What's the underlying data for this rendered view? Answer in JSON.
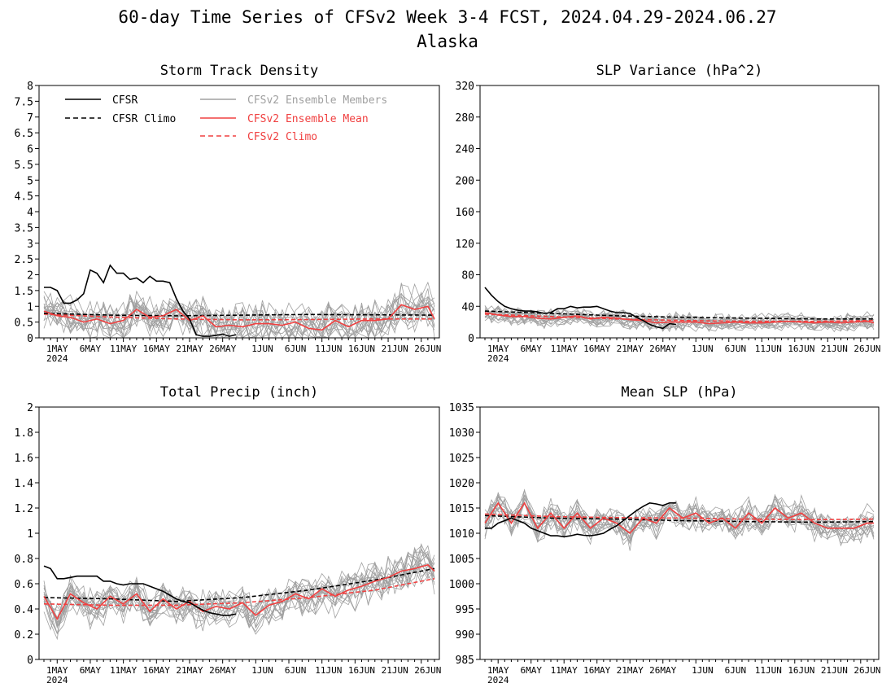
{
  "title": "60-day Time Series of CFSv2 Week 3-4 FCST, 2024.04.29-2024.06.27",
  "subtitle": "Alaska",
  "colors": {
    "cfsr": "#000000",
    "members": "#a0a0a0",
    "ens_mean": "#f04040",
    "axis": "#000000"
  },
  "legend": {
    "placement": "top-left",
    "entries": [
      {
        "label": "CFSR",
        "style": "solid",
        "color": "#000000"
      },
      {
        "label": "CFSR Climo",
        "style": "dashed",
        "color": "#000000"
      },
      {
        "label": "CFSv2 Ensemble Members",
        "style": "solid",
        "color": "#a0a0a0"
      },
      {
        "label": "CFSv2 Ensemble Mean",
        "style": "solid",
        "color": "#f04040"
      },
      {
        "label": "CFSv2 Climo",
        "style": "dashed",
        "color": "#f04040"
      }
    ]
  },
  "chart_data": [
    {
      "type": "line",
      "title": "Storm Track Density",
      "ylim": [
        0,
        8
      ],
      "yticks": [
        0,
        0.5,
        1,
        1.5,
        2,
        2.5,
        3,
        3.5,
        4,
        4.5,
        5,
        5.5,
        6,
        6.5,
        7,
        7.5,
        8
      ],
      "ytick_labels": [
        "0",
        "0.5",
        "1",
        "1.5",
        "2",
        "2.5",
        "3",
        "3.5",
        "4",
        "4.5",
        "5",
        "5.5",
        "6",
        "6.5",
        "7",
        "7.5",
        "8"
      ],
      "x_range_days": [
        0,
        59
      ],
      "xticks": [
        "1MAY",
        "6MAY",
        "11MAY",
        "16MAY",
        "21MAY",
        "26MAY",
        "1JUN",
        "6JUN",
        "11JUN",
        "16JUN",
        "21JUN",
        "26JUN"
      ],
      "xtick_year": "2024",
      "grid": false,
      "legend": true,
      "series": [
        {
          "name": "CFSR",
          "style": "solid",
          "x": [
            0,
            1,
            2,
            3,
            4,
            5,
            6,
            7,
            8,
            9,
            10,
            11,
            12,
            13,
            14,
            15,
            16,
            17,
            18,
            19,
            20,
            21,
            22,
            23,
            24,
            25,
            26,
            27,
            28,
            29
          ],
          "y": [
            1.6,
            1.6,
            1.5,
            1.1,
            1.1,
            1.2,
            1.4,
            2.15,
            2.05,
            1.75,
            2.3,
            2.05,
            2.05,
            1.85,
            1.9,
            1.75,
            1.95,
            1.8,
            1.8,
            1.75,
            1.25,
            0.85,
            0.6,
            0.1,
            0.05,
            0.05,
            0.08,
            0.12,
            0.05,
            0.1
          ]
        },
        {
          "name": "CFSR Climo",
          "style": "dashed",
          "x": [
            0,
            10,
            20,
            30,
            40,
            50,
            59
          ],
          "y": [
            0.78,
            0.72,
            0.7,
            0.72,
            0.74,
            0.73,
            0.72
          ]
        },
        {
          "name": "CFSv2 Ensemble Mean",
          "style": "solid",
          "x": [
            0,
            2,
            4,
            6,
            8,
            10,
            12,
            14,
            16,
            18,
            20,
            22,
            24,
            26,
            28,
            30,
            32,
            34,
            36,
            38,
            40,
            42,
            44,
            46,
            48,
            50,
            52,
            54,
            56,
            58,
            59
          ],
          "y": [
            0.85,
            0.7,
            0.65,
            0.5,
            0.6,
            0.45,
            0.55,
            0.9,
            0.65,
            0.7,
            0.9,
            0.55,
            0.7,
            0.35,
            0.4,
            0.35,
            0.45,
            0.45,
            0.4,
            0.5,
            0.3,
            0.25,
            0.55,
            0.35,
            0.55,
            0.55,
            0.6,
            1.05,
            0.9,
            1.0,
            0.6
          ]
        },
        {
          "name": "CFSv2 Climo",
          "style": "dashed",
          "x": [
            0,
            10,
            20,
            30,
            40,
            50,
            59
          ],
          "y": [
            0.75,
            0.66,
            0.6,
            0.57,
            0.58,
            0.6,
            0.6
          ]
        }
      ],
      "members": {
        "count": 16,
        "base": "ens_mean",
        "spread": 0.6,
        "max": 3.1
      }
    },
    {
      "type": "line",
      "title": "SLP Variance (hPa^2)",
      "ylim": [
        0,
        320
      ],
      "yticks": [
        0,
        40,
        80,
        120,
        160,
        200,
        240,
        280,
        320
      ],
      "ytick_labels": [
        "0",
        "40",
        "80",
        "120",
        "160",
        "200",
        "240",
        "280",
        "320"
      ],
      "x_range_days": [
        0,
        59
      ],
      "xticks": [
        "1MAY",
        "6MAY",
        "11MAY",
        "16MAY",
        "21MAY",
        "26MAY",
        "1JUN",
        "6JUN",
        "11JUN",
        "16JUN",
        "21JUN",
        "26JUN"
      ],
      "xtick_year": "2024",
      "grid": false,
      "legend": false,
      "series": [
        {
          "name": "CFSR",
          "style": "solid",
          "x": [
            0,
            1,
            2,
            3,
            4,
            5,
            6,
            7,
            8,
            9,
            10,
            11,
            12,
            13,
            14,
            15,
            16,
            17,
            18,
            19,
            20,
            21,
            22,
            23,
            24,
            25,
            26,
            27,
            28,
            29
          ],
          "y": [
            64,
            54,
            46,
            40,
            37,
            35,
            34,
            34,
            33,
            31,
            32,
            37,
            37,
            40,
            38,
            39,
            39,
            40,
            37,
            34,
            32,
            32,
            31,
            26,
            22,
            17,
            14,
            12,
            18,
            17
          ]
        },
        {
          "name": "CFSR Climo",
          "style": "dashed",
          "x": [
            0,
            10,
            20,
            30,
            40,
            50,
            59
          ],
          "y": [
            34,
            31,
            28,
            26,
            25,
            24,
            24
          ]
        },
        {
          "name": "CFSv2 Ensemble Mean",
          "style": "solid",
          "x": [
            0,
            2,
            4,
            6,
            8,
            10,
            12,
            14,
            16,
            18,
            20,
            22,
            24,
            26,
            28,
            30,
            32,
            34,
            36,
            38,
            40,
            42,
            44,
            46,
            48,
            50,
            52,
            54,
            56,
            58,
            59
          ],
          "y": [
            32,
            29,
            27,
            27,
            25,
            24,
            26,
            28,
            24,
            26,
            25,
            23,
            22,
            19,
            20,
            20,
            20,
            18,
            19,
            20,
            19,
            19,
            20,
            21,
            20,
            19,
            20,
            19,
            20,
            21,
            19
          ]
        },
        {
          "name": "CFSv2 Climo",
          "style": "dashed",
          "x": [
            0,
            10,
            20,
            30,
            40,
            50,
            59
          ],
          "y": [
            30,
            27,
            24,
            22,
            21,
            21,
            22
          ]
        }
      ],
      "members": {
        "count": 16,
        "base": "ens_mean",
        "spread": 10,
        "max": 45
      }
    },
    {
      "type": "line",
      "title": "Total Precip (inch)",
      "ylim": [
        0,
        2
      ],
      "yticks": [
        0,
        0.2,
        0.4,
        0.6,
        0.8,
        1,
        1.2,
        1.4,
        1.6,
        1.8,
        2
      ],
      "ytick_labels": [
        "0",
        "0.2",
        "0.4",
        "0.6",
        "0.8",
        "1",
        "1.2",
        "1.4",
        "1.6",
        "1.8",
        "2"
      ],
      "x_range_days": [
        0,
        59
      ],
      "xticks": [
        "1MAY",
        "6MAY",
        "11MAY",
        "16MAY",
        "21MAY",
        "26MAY",
        "1JUN",
        "6JUN",
        "11JUN",
        "16JUN",
        "21JUN",
        "26JUN"
      ],
      "xtick_year": "2024",
      "grid": false,
      "legend": false,
      "series": [
        {
          "name": "CFSR",
          "style": "solid",
          "x": [
            0,
            1,
            2,
            3,
            4,
            5,
            6,
            7,
            8,
            9,
            10,
            11,
            12,
            13,
            14,
            15,
            16,
            17,
            18,
            19,
            20,
            21,
            22,
            23,
            24,
            25,
            26,
            27,
            28,
            29
          ],
          "y": [
            0.74,
            0.72,
            0.64,
            0.64,
            0.65,
            0.66,
            0.66,
            0.66,
            0.66,
            0.62,
            0.62,
            0.6,
            0.59,
            0.6,
            0.6,
            0.6,
            0.58,
            0.56,
            0.54,
            0.51,
            0.48,
            0.46,
            0.45,
            0.42,
            0.39,
            0.37,
            0.36,
            0.35,
            0.35,
            0.36
          ]
        },
        {
          "name": "CFSR Climo",
          "style": "dashed",
          "x": [
            0,
            10,
            20,
            30,
            40,
            50,
            59
          ],
          "y": [
            0.49,
            0.48,
            0.46,
            0.49,
            0.55,
            0.63,
            0.72
          ]
        },
        {
          "name": "CFSv2 Ensemble Mean",
          "style": "solid",
          "x": [
            0,
            2,
            4,
            6,
            8,
            10,
            12,
            14,
            16,
            18,
            20,
            22,
            24,
            26,
            28,
            30,
            32,
            34,
            36,
            38,
            40,
            42,
            44,
            46,
            48,
            50,
            52,
            54,
            56,
            58,
            59
          ],
          "y": [
            0.5,
            0.32,
            0.52,
            0.45,
            0.4,
            0.5,
            0.44,
            0.52,
            0.38,
            0.48,
            0.4,
            0.46,
            0.38,
            0.42,
            0.4,
            0.45,
            0.35,
            0.43,
            0.46,
            0.52,
            0.48,
            0.56,
            0.5,
            0.55,
            0.58,
            0.62,
            0.65,
            0.7,
            0.72,
            0.75,
            0.7
          ]
        },
        {
          "name": "CFSv2 Climo",
          "style": "dashed",
          "x": [
            0,
            10,
            20,
            30,
            40,
            50,
            59
          ],
          "y": [
            0.44,
            0.43,
            0.43,
            0.45,
            0.49,
            0.55,
            0.64
          ]
        }
      ],
      "members": {
        "count": 16,
        "base": "ens_mean",
        "spread": 0.14,
        "max": 0.97
      }
    },
    {
      "type": "line",
      "title": "Mean SLP (hPa)",
      "ylim": [
        985,
        1035
      ],
      "yticks": [
        985,
        990,
        995,
        1000,
        1005,
        1010,
        1015,
        1020,
        1025,
        1030,
        1035
      ],
      "ytick_labels": [
        "985",
        "990",
        "995",
        "1000",
        "1005",
        "1010",
        "1015",
        "1020",
        "1025",
        "1030",
        "1035"
      ],
      "x_range_days": [
        0,
        59
      ],
      "xticks": [
        "1MAY",
        "6MAY",
        "11MAY",
        "16MAY",
        "21MAY",
        "26MAY",
        "1JUN",
        "6JUN",
        "11JUN",
        "16JUN",
        "21JUN",
        "26JUN"
      ],
      "xtick_year": "2024",
      "grid": false,
      "legend": false,
      "series": [
        {
          "name": "CFSR",
          "style": "solid",
          "x": [
            0,
            1,
            2,
            3,
            4,
            5,
            6,
            7,
            8,
            9,
            10,
            11,
            12,
            13,
            14,
            15,
            16,
            17,
            18,
            19,
            20,
            21,
            22,
            23,
            24,
            25,
            26,
            27,
            28,
            29
          ],
          "y": [
            1011,
            1011,
            1012,
            1012.5,
            1013,
            1012.5,
            1012,
            1011,
            1010.5,
            1010,
            1009.5,
            1009.5,
            1009.3,
            1009.5,
            1009.8,
            1009.6,
            1009.5,
            1009.7,
            1010,
            1010.8,
            1011.5,
            1012.5,
            1013.5,
            1014.5,
            1015.3,
            1016,
            1015.8,
            1015.5,
            1016,
            1016
          ]
        },
        {
          "name": "CFSR Climo",
          "style": "dashed",
          "x": [
            0,
            10,
            20,
            30,
            40,
            50,
            59
          ],
          "y": [
            1013.5,
            1013,
            1012.8,
            1012.5,
            1012.3,
            1012.2,
            1012.3
          ]
        },
        {
          "name": "CFSv2 Ensemble Mean",
          "style": "solid",
          "x": [
            0,
            2,
            4,
            6,
            8,
            10,
            12,
            14,
            16,
            18,
            20,
            22,
            24,
            26,
            28,
            30,
            32,
            34,
            36,
            38,
            40,
            42,
            44,
            46,
            48,
            50,
            52,
            54,
            56,
            58,
            59
          ],
          "y": [
            1012,
            1016,
            1012,
            1016,
            1011,
            1014,
            1011,
            1014,
            1011,
            1013,
            1012,
            1010,
            1013,
            1012,
            1015,
            1013,
            1014,
            1012,
            1013,
            1011,
            1014,
            1012,
            1015,
            1013,
            1014,
            1012,
            1011,
            1011,
            1011,
            1012,
            1012
          ]
        },
        {
          "name": "CFSv2 Climo",
          "style": "dashed",
          "x": [
            0,
            10,
            20,
            30,
            40,
            50,
            59
          ],
          "y": [
            1013.8,
            1013.3,
            1013.1,
            1013,
            1012.8,
            1012.7,
            1012.8
          ]
        }
      ],
      "members": {
        "count": 16,
        "base": "ens_mean",
        "spread": 2.8,
        "max": 1021
      }
    }
  ]
}
